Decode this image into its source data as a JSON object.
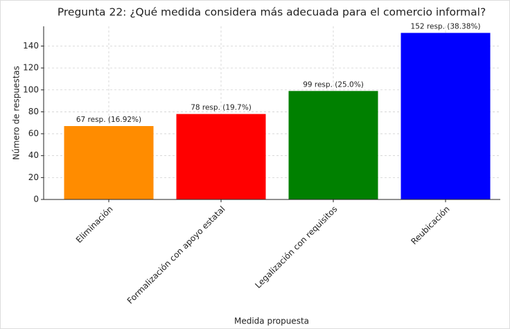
{
  "chart_data": {
    "type": "bar",
    "title": "Pregunta 22: ¿Qué medida considera más adecuada para el comercio informal?",
    "x_label": "Medida propuesta",
    "y_label": "Número de respuestas",
    "categories": [
      "Eliminación",
      "Formalización con apoyo estatal",
      "Legalización con requisitos",
      "Reubicación"
    ],
    "values": [
      67,
      78,
      99,
      152
    ],
    "value_labels": [
      "67 resp. (16.92%)",
      "78 resp. (19.7%)",
      "99 resp. (25.0%)",
      "152 resp. (38.38%)"
    ],
    "colors": [
      "#ff8c00",
      "#ff0000",
      "#008000",
      "#0000ff"
    ],
    "ylim": [
      0,
      158
    ],
    "yticks": [
      0,
      20,
      40,
      60,
      80,
      100,
      120,
      140
    ],
    "grid": true
  }
}
